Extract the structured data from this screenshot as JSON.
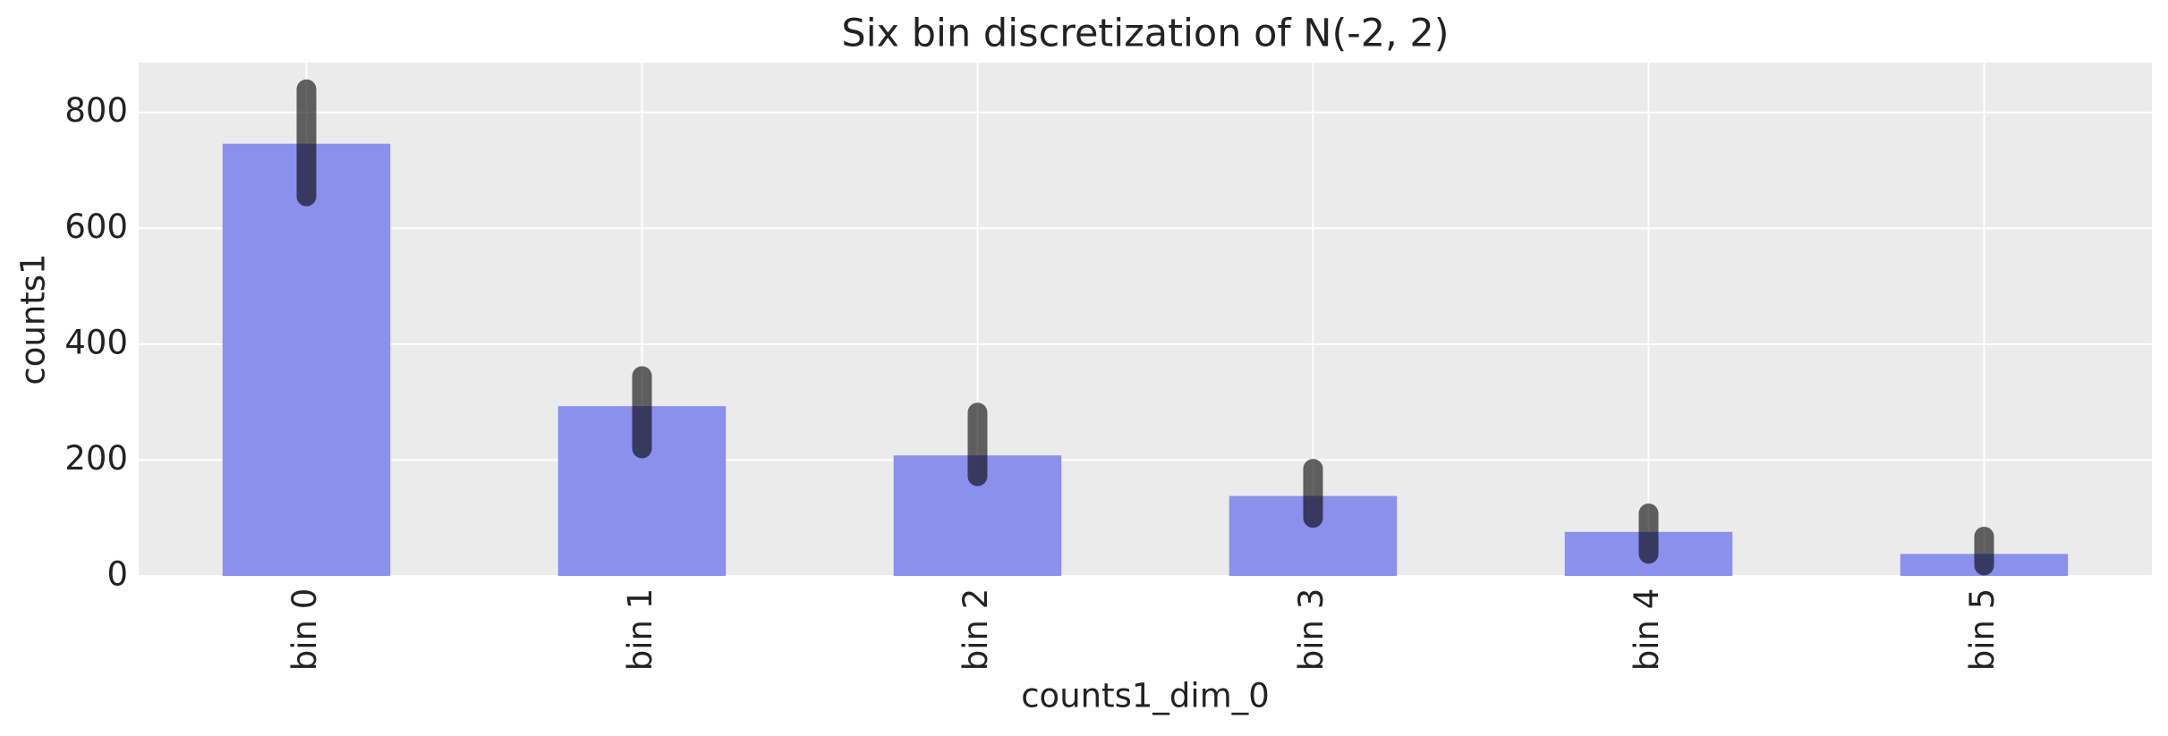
{
  "chart_data": {
    "type": "bar",
    "title": "Six bin discretization of N(-2, 2)",
    "xlabel": "counts1_dim_0",
    "ylabel": "counts1",
    "categories": [
      "bin 0",
      "bin 1",
      "bin 2",
      "bin 3",
      "bin 4",
      "bin 5"
    ],
    "values": [
      746,
      293,
      208,
      138,
      76,
      38
    ],
    "ranges": [
      [
        655,
        840
      ],
      [
        220,
        345
      ],
      [
        172,
        282
      ],
      [
        100,
        185
      ],
      [
        38,
        108
      ],
      [
        18,
        68
      ]
    ],
    "color": "#8b90ec",
    "range_color": "#000000",
    "ylim": [
      0,
      886
    ],
    "yticks": [
      0,
      200,
      400,
      600,
      800
    ],
    "grid": true
  }
}
